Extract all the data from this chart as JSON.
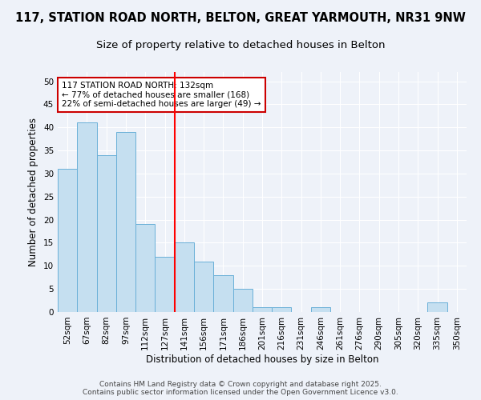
{
  "title1": "117, STATION ROAD NORTH, BELTON, GREAT YARMOUTH, NR31 9NW",
  "title2": "Size of property relative to detached houses in Belton",
  "xlabel": "Distribution of detached houses by size in Belton",
  "ylabel": "Number of detached properties",
  "categories": [
    "52sqm",
    "67sqm",
    "82sqm",
    "97sqm",
    "112sqm",
    "127sqm",
    "141sqm",
    "156sqm",
    "171sqm",
    "186sqm",
    "201sqm",
    "216sqm",
    "231sqm",
    "246sqm",
    "261sqm",
    "276sqm",
    "290sqm",
    "305sqm",
    "320sqm",
    "335sqm",
    "350sqm"
  ],
  "values": [
    31,
    41,
    34,
    39,
    19,
    12,
    15,
    11,
    8,
    5,
    1,
    1,
    0,
    1,
    0,
    0,
    0,
    0,
    0,
    2,
    0
  ],
  "bar_color": "#c5dff0",
  "bar_edge_color": "#6ab0d8",
  "vline_x_index": 6,
  "annotation_text": "117 STATION ROAD NORTH: 132sqm\n← 77% of detached houses are smaller (168)\n22% of semi-detached houses are larger (49) →",
  "annotation_box_color": "#ffffff",
  "annotation_box_edge_color": "#cc0000",
  "ylim": [
    0,
    52
  ],
  "yticks": [
    0,
    5,
    10,
    15,
    20,
    25,
    30,
    35,
    40,
    45,
    50
  ],
  "background_color": "#eef2f9",
  "grid_color": "#ffffff",
  "footer1": "Contains HM Land Registry data © Crown copyright and database right 2025.",
  "footer2": "Contains public sector information licensed under the Open Government Licence v3.0.",
  "title_fontsize": 10.5,
  "subtitle_fontsize": 9.5,
  "axis_label_fontsize": 8.5,
  "tick_fontsize": 7.5,
  "annot_fontsize": 7.5,
  "footer_fontsize": 6.5
}
